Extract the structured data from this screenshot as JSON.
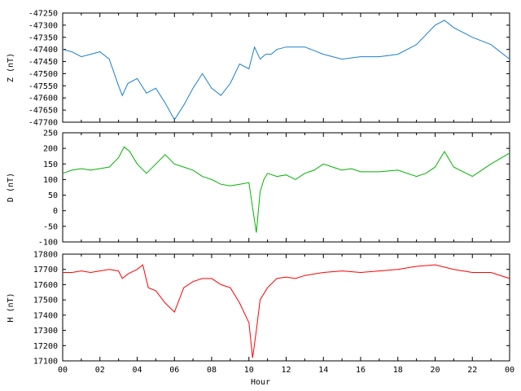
{
  "chart_data": [
    {
      "type": "line",
      "ylabel": "Z (nT)",
      "ylim": [
        -47700,
        -47250
      ],
      "yticks": [
        -47250,
        -47300,
        -47350,
        -47400,
        -47450,
        -47500,
        -47550,
        -47600,
        -47650,
        -47700
      ],
      "color": "#1a7fd4",
      "series": [
        {
          "x": [
            0,
            0.5,
            1,
            1.5,
            2,
            2.5,
            3,
            3.2,
            3.5,
            4,
            4.5,
            5,
            5.5,
            6,
            6.5,
            7,
            7.5,
            8,
            8.5,
            9,
            9.5,
            10,
            10.3,
            10.6,
            10.9,
            11.2,
            11.5,
            12,
            13,
            14,
            15,
            16,
            17,
            18,
            19,
            20,
            20.5,
            21,
            22,
            23,
            24
          ],
          "values": [
            -47400,
            -47410,
            -47430,
            -47420,
            -47410,
            -47440,
            -47550,
            -47590,
            -47540,
            -47520,
            -47580,
            -47560,
            -47620,
            -47690,
            -47630,
            -47560,
            -47500,
            -47560,
            -47590,
            -47540,
            -47460,
            -47480,
            -47390,
            -47440,
            -47420,
            -47420,
            -47400,
            -47390,
            -47390,
            -47420,
            -47440,
            -47430,
            -47430,
            -47420,
            -47380,
            -47300,
            -47280,
            -47310,
            -47350,
            -47380,
            -47440
          ]
        }
      ]
    },
    {
      "type": "line",
      "ylabel": "D (nT)",
      "ylim": [
        -100,
        250
      ],
      "yticks": [
        250,
        200,
        150,
        100,
        50,
        0,
        -50,
        -100
      ],
      "color": "#00b400",
      "series": [
        {
          "x": [
            0,
            0.5,
            1,
            1.5,
            2,
            2.5,
            3,
            3.3,
            3.6,
            4,
            4.5,
            5,
            5.5,
            6,
            6.5,
            7,
            7.5,
            8,
            8.5,
            9,
            9.5,
            10,
            10.2,
            10.4,
            10.6,
            10.8,
            11,
            11.5,
            12,
            12.5,
            13,
            13.5,
            14,
            14.5,
            15,
            15.5,
            16,
            17,
            18,
            19,
            19.5,
            20,
            20.5,
            21,
            22,
            23,
            24
          ],
          "values": [
            120,
            130,
            135,
            130,
            135,
            140,
            170,
            205,
            190,
            150,
            120,
            150,
            180,
            150,
            140,
            130,
            110,
            100,
            85,
            80,
            85,
            90,
            10,
            -70,
            60,
            100,
            120,
            110,
            115,
            100,
            120,
            130,
            150,
            140,
            130,
            135,
            125,
            125,
            130,
            110,
            120,
            140,
            190,
            140,
            110,
            150,
            185
          ]
        }
      ]
    },
    {
      "type": "line",
      "ylabel": "H (nT)",
      "ylim": [
        17100,
        17800
      ],
      "yticks": [
        17800,
        17700,
        17600,
        17500,
        17400,
        17300,
        17200,
        17100
      ],
      "color": "#ff0000",
      "series": [
        {
          "x": [
            0,
            0.5,
            1,
            1.5,
            2,
            2.5,
            3,
            3.2,
            3.5,
            4,
            4.3,
            4.6,
            5,
            5.5,
            6,
            6.5,
            7,
            7.5,
            8,
            8.5,
            9,
            9.5,
            10,
            10.2,
            10.4,
            10.6,
            11,
            11.5,
            12,
            12.5,
            13,
            14,
            15,
            16,
            17,
            18,
            19,
            20,
            21,
            22,
            23,
            24
          ],
          "values": [
            17680,
            17680,
            17690,
            17680,
            17690,
            17700,
            17690,
            17640,
            17670,
            17700,
            17730,
            17580,
            17560,
            17480,
            17420,
            17580,
            17620,
            17640,
            17640,
            17600,
            17580,
            17480,
            17350,
            17120,
            17300,
            17500,
            17580,
            17640,
            17650,
            17640,
            17660,
            17680,
            17690,
            17680,
            17690,
            17700,
            17720,
            17730,
            17700,
            17680,
            17680,
            17640
          ]
        }
      ]
    }
  ],
  "x_axis": {
    "label": "Hour",
    "range": [
      0,
      24
    ],
    "tick_labels": [
      "00",
      "02",
      "04",
      "06",
      "08",
      "10",
      "12",
      "14",
      "16",
      "18",
      "20",
      "22",
      "00"
    ]
  }
}
